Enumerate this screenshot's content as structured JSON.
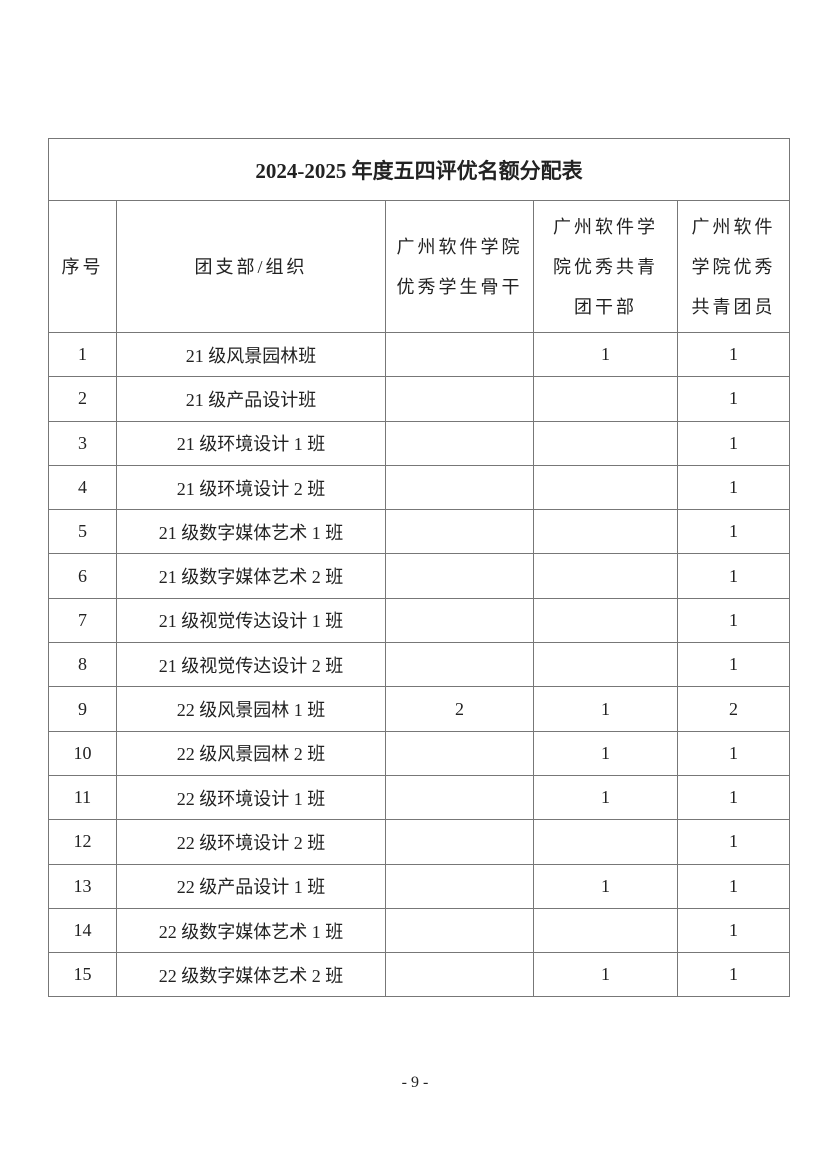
{
  "title": "2024-2025 年度五四评优名额分配表",
  "headers": [
    "序号",
    "团支部/组织",
    "广州软件学院优秀学生骨干",
    "广州软件学院优秀共青团干部",
    "广州软件学院优秀共青团员"
  ],
  "header_lines": [
    [
      "序号"
    ],
    [
      "团支部/组织"
    ],
    [
      "广州软件学院",
      "优秀学生骨干"
    ],
    [
      "广州软件学",
      "院优秀共青",
      "团干部"
    ],
    [
      "广州软件",
      "学院优秀",
      "共青团员"
    ]
  ],
  "rows": [
    [
      "1",
      "21 级风景园林班",
      "",
      "1",
      "1"
    ],
    [
      "2",
      "21 级产品设计班",
      "",
      "",
      "1"
    ],
    [
      "3",
      "21 级环境设计 1 班",
      "",
      "",
      "1"
    ],
    [
      "4",
      "21 级环境设计 2 班",
      "",
      "",
      "1"
    ],
    [
      "5",
      "21 级数字媒体艺术 1 班",
      "",
      "",
      "1"
    ],
    [
      "6",
      "21 级数字媒体艺术 2 班",
      "",
      "",
      "1"
    ],
    [
      "7",
      "21 级视觉传达设计 1 班",
      "",
      "",
      "1"
    ],
    [
      "8",
      "21 级视觉传达设计 2 班",
      "",
      "",
      "1"
    ],
    [
      "9",
      "22 级风景园林 1 班",
      "2",
      "1",
      "2"
    ],
    [
      "10",
      "22 级风景园林 2 班",
      "",
      "1",
      "1"
    ],
    [
      "11",
      "22 级环境设计 1 班",
      "",
      "1",
      "1"
    ],
    [
      "12",
      "22 级环境设计 2 班",
      "",
      "",
      "1"
    ],
    [
      "13",
      "22 级产品设计 1 班",
      "",
      "1",
      "1"
    ],
    [
      "14",
      "22 级数字媒体艺术 1 班",
      "",
      "",
      "1"
    ],
    [
      "15",
      "22 级数字媒体艺术 2 班",
      "",
      "1",
      "1"
    ]
  ],
  "page_number": "- 9 -"
}
